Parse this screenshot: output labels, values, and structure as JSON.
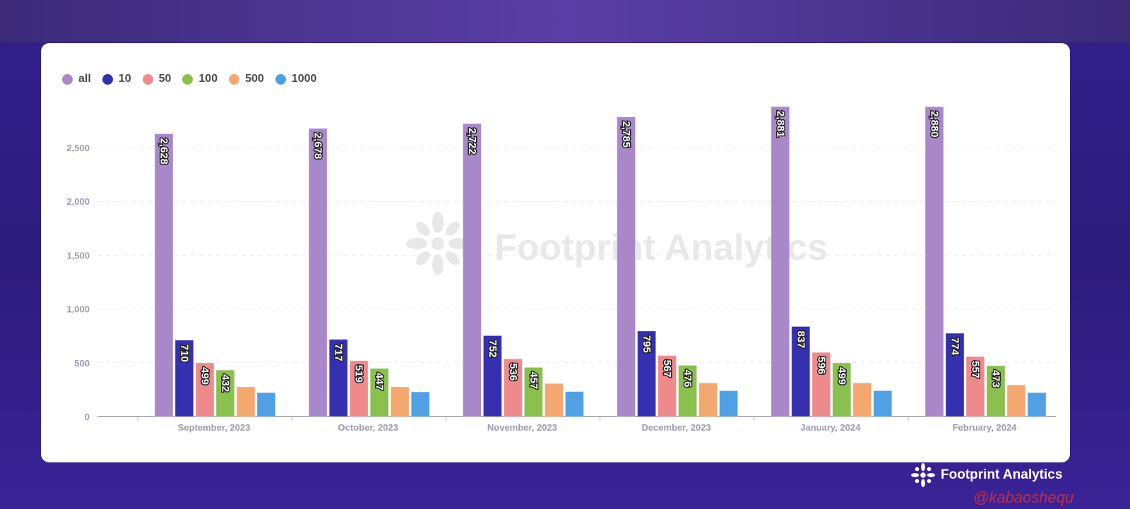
{
  "chart_data": {
    "type": "bar",
    "categories": [
      "September, 2023",
      "October, 2023",
      "November, 2023",
      "December, 2023",
      "January, 2024",
      "February, 2024"
    ],
    "series": [
      {
        "name": "all",
        "color": "#a888c8",
        "values": [
          2628,
          2678,
          2722,
          2785,
          2881,
          2880
        ],
        "labeled": true
      },
      {
        "name": "10",
        "color": "#3430b0",
        "values": [
          710,
          717,
          752,
          795,
          837,
          774
        ],
        "labeled": true
      },
      {
        "name": "50",
        "color": "#ef8a8c",
        "values": [
          499,
          519,
          536,
          567,
          596,
          557
        ],
        "labeled": true
      },
      {
        "name": "100",
        "color": "#89c04e",
        "values": [
          432,
          447,
          457,
          476,
          499,
          473
        ],
        "labeled": true
      },
      {
        "name": "500",
        "color": "#f4a870",
        "values": [
          276,
          276,
          307,
          312,
          312,
          294
        ],
        "labeled": false
      },
      {
        "name": "1000",
        "color": "#4fa0e4",
        "values": [
          222,
          229,
          232,
          240,
          240,
          222
        ],
        "labeled": false
      }
    ],
    "yticks": [
      "0",
      "500",
      "1,000",
      "1,500",
      "2,000",
      "2,500"
    ],
    "ytick_values": [
      0,
      500,
      1000,
      1500,
      2000,
      2500
    ],
    "ylim": [
      0,
      2900
    ],
    "grid": true,
    "legend_position": "top-left",
    "value_labels": [
      [
        "2,628",
        "2,678",
        "2,722",
        "2,785",
        "2,881",
        "2,880"
      ],
      [
        "710",
        "717",
        "752",
        "795",
        "837",
        "774"
      ],
      [
        "499",
        "519",
        "536",
        "567",
        "596",
        "557"
      ],
      [
        "432",
        "447",
        "457",
        "476",
        "499",
        "473"
      ]
    ]
  },
  "watermark": "Footprint Analytics",
  "brand": {
    "name": "Footprint Analytics",
    "handle": "@kabaoshequ"
  }
}
